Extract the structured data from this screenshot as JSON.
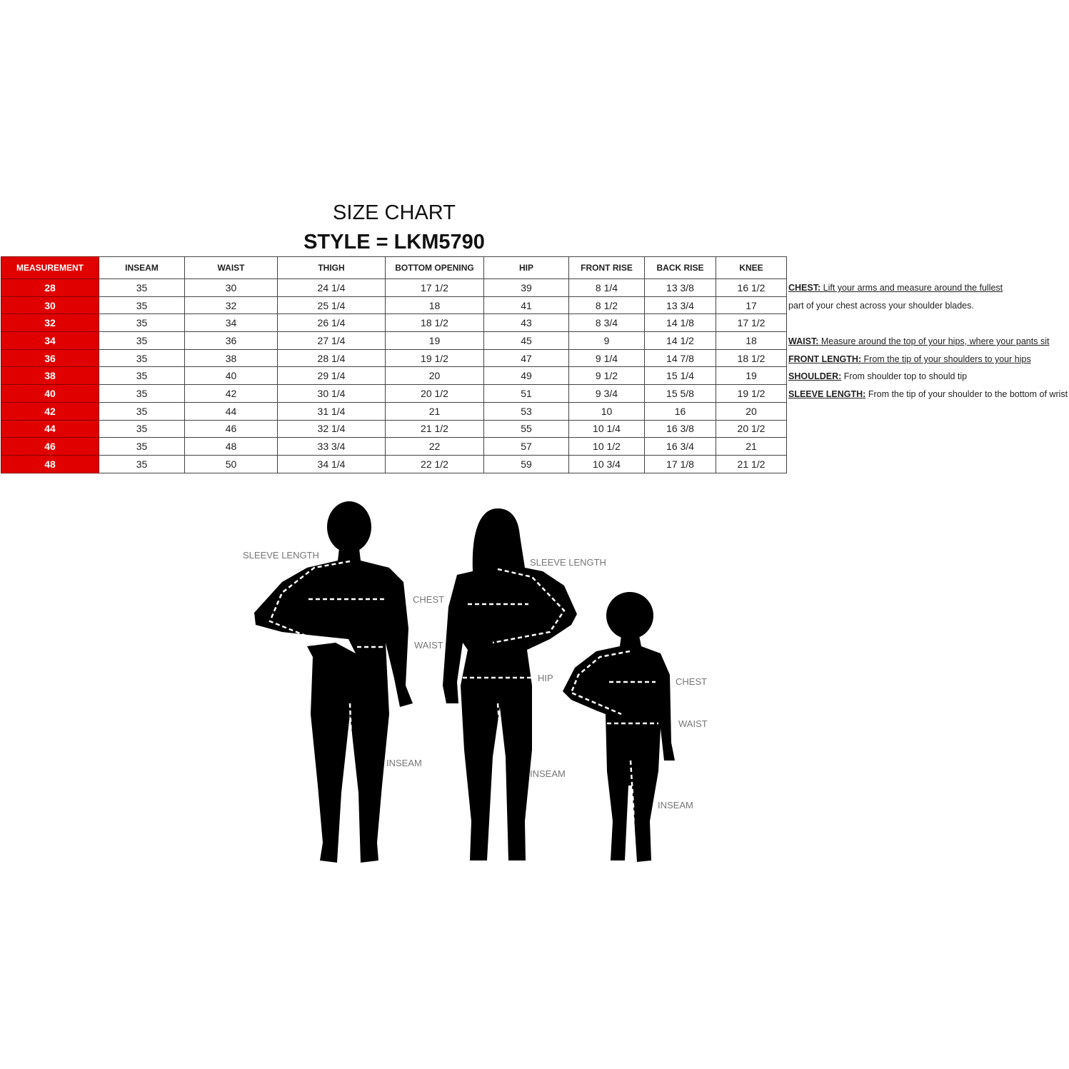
{
  "title": "SIZE CHART",
  "style": "STYLE = LKM5790",
  "table": {
    "headers": [
      "MEASUREMENT",
      "INSEAM",
      "WAIST",
      "THIGH",
      "BOTTOM OPENING",
      "HIP",
      "FRONT RISE",
      "BACK RISE",
      "KNEE"
    ],
    "rows": [
      [
        "28",
        "35",
        "30",
        "24 1/4",
        "17 1/2",
        "39",
        "8 1/4",
        "13 3/8",
        "16 1/2"
      ],
      [
        "30",
        "35",
        "32",
        "25 1/4",
        "18",
        "41",
        "8 1/2",
        "13 3/4",
        "17"
      ],
      [
        "32",
        "35",
        "34",
        "26 1/4",
        "18 1/2",
        "43",
        "8 3/4",
        "14 1/8",
        "17 1/2"
      ],
      [
        "34",
        "35",
        "36",
        "27 1/4",
        "19",
        "45",
        "9",
        "14 1/2",
        "18"
      ],
      [
        "36",
        "35",
        "38",
        "28 1/4",
        "19 1/2",
        "47",
        "9 1/4",
        "14 7/8",
        "18 1/2"
      ],
      [
        "38",
        "35",
        "40",
        "29 1/4",
        "20",
        "49",
        "9 1/2",
        "15 1/4",
        "19"
      ],
      [
        "40",
        "35",
        "42",
        "30 1/4",
        "20 1/2",
        "51",
        "9 3/4",
        "15 5/8",
        "19 1/2"
      ],
      [
        "42",
        "35",
        "44",
        "31 1/4",
        "21",
        "53",
        "10",
        "16",
        "20"
      ],
      [
        "44",
        "35",
        "46",
        "32 1/4",
        "21 1/2",
        "55",
        "10 1/4",
        "16 3/8",
        "20 1/2"
      ],
      [
        "46",
        "35",
        "48",
        "33 3/4",
        "22",
        "57",
        "10 1/2",
        "16 3/4",
        "21"
      ],
      [
        "48",
        "35",
        "50",
        "34 1/4",
        "22 1/2",
        "59",
        "10 3/4",
        "17 1/8",
        "21 1/2"
      ]
    ],
    "accent": "#e00000"
  },
  "notes": [
    {
      "label": "CHEST:",
      "text": " Lift your arms and measure around the fullest "
    },
    {
      "label": "",
      "text": "part of your chest across your shoulder blades."
    },
    {
      "label": "WAIST:",
      "text": " Measure around the top of  your hips, where your pants sit"
    },
    {
      "label": "FRONT LENGTH:",
      "text": " From the tip of your shoulders to your hips"
    },
    {
      "label": "SHOULDER:",
      "text": " From shoulder top to should tip"
    },
    {
      "label": "SLEEVE LENGTH:",
      "text": " From the tip of your shoulder to the bottom of wrist"
    }
  ],
  "figure": {
    "man": {
      "sleeve": "SLEEVE LENGTH",
      "chest": "CHEST",
      "waist": "WAIST",
      "inseam": "INSEAM"
    },
    "woman": {
      "sleeve": "SLEEVE LENGTH",
      "hip": "HIP",
      "inseam": "INSEAM"
    },
    "child": {
      "chest": "CHEST",
      "waist": "WAIST",
      "inseam": "INSEAM"
    }
  }
}
